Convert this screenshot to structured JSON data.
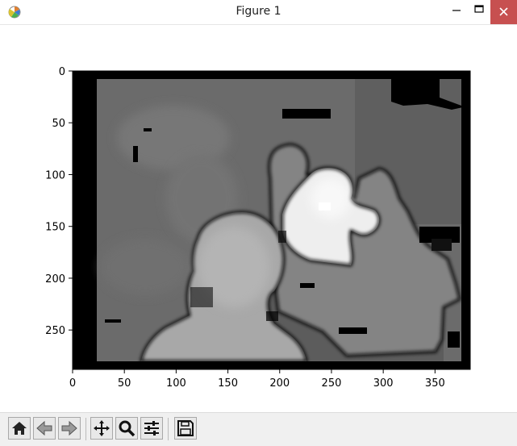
{
  "window": {
    "title": "Figure 1",
    "app_icon": "matplotlib-figure-icon",
    "controls": [
      "minimize-icon",
      "maximize-icon",
      "close-icon"
    ]
  },
  "plot": {
    "type": "image",
    "colormap": "gray",
    "x_ticks": [
      "0",
      "50",
      "100",
      "150",
      "200",
      "250",
      "300",
      "350"
    ],
    "y_ticks": [
      "0",
      "50",
      "100",
      "150",
      "200",
      "250"
    ],
    "x_range": [
      0,
      384
    ],
    "y_range": [
      288,
      0
    ]
  },
  "toolbar": {
    "buttons": [
      {
        "name": "home-button",
        "icon": "home-icon"
      },
      {
        "name": "back-button",
        "icon": "back-arrow-icon"
      },
      {
        "name": "forward-button",
        "icon": "forward-arrow-icon"
      },
      {
        "name": "pan-button",
        "icon": "pan-move-icon"
      },
      {
        "name": "zoom-button",
        "icon": "magnifier-icon"
      },
      {
        "name": "configure-subplots-button",
        "icon": "sliders-icon"
      },
      {
        "name": "save-button",
        "icon": "floppy-disk-icon"
      }
    ]
  },
  "colors": {
    "title_bar": "#ffffff",
    "close_button": "#c75050",
    "toolbar": "#f0f0f0"
  }
}
